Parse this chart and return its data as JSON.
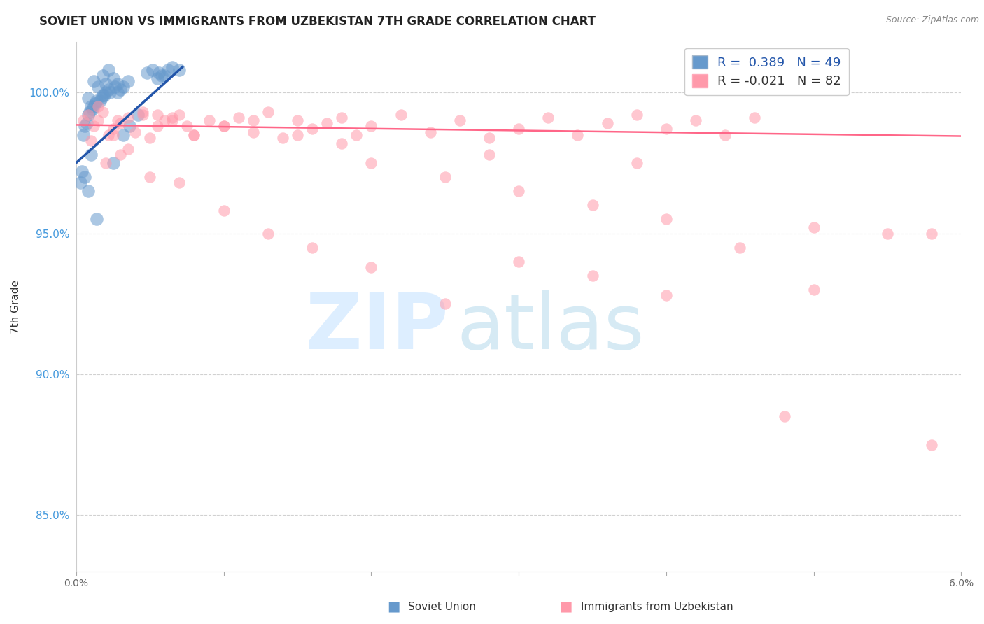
{
  "title": "SOVIET UNION VS IMMIGRANTS FROM UZBEKISTAN 7TH GRADE CORRELATION CHART",
  "source": "Source: ZipAtlas.com",
  "ylabel": "7th Grade",
  "xmin": 0.0,
  "xmax": 6.0,
  "ymin": 83.0,
  "ymax": 101.8,
  "yticks": [
    85.0,
    90.0,
    95.0,
    100.0
  ],
  "ytick_labels": [
    "85.0%",
    "90.0%",
    "95.0%",
    "100.0%"
  ],
  "blue_color": "#6699CC",
  "pink_color": "#FF99AA",
  "blue_line_color": "#2255AA",
  "pink_line_color": "#FF6688",
  "blue_scatter_x": [
    0.12,
    0.18,
    0.22,
    0.08,
    0.15,
    0.1,
    0.05,
    0.2,
    0.25,
    0.3,
    0.35,
    0.28,
    0.32,
    0.18,
    0.14,
    0.09,
    0.06,
    0.22,
    0.28,
    0.17,
    0.13,
    0.08,
    0.12,
    0.26,
    0.19,
    0.23,
    0.11,
    0.07,
    0.16,
    0.2,
    0.48,
    0.52,
    0.56,
    0.58,
    0.62,
    0.65,
    0.7,
    0.55,
    0.6,
    0.1,
    0.04,
    0.32,
    0.36,
    0.03,
    0.06,
    0.08,
    0.42,
    0.25,
    0.14
  ],
  "blue_scatter_y": [
    100.4,
    100.6,
    100.8,
    99.8,
    100.2,
    99.5,
    98.5,
    100.3,
    100.5,
    100.1,
    100.4,
    100.0,
    100.2,
    99.9,
    99.7,
    99.3,
    98.8,
    100.1,
    100.3,
    99.8,
    99.6,
    99.2,
    99.5,
    100.2,
    99.9,
    100.0,
    99.4,
    98.9,
    99.7,
    100.0,
    100.7,
    100.8,
    100.7,
    100.6,
    100.8,
    100.9,
    100.8,
    100.5,
    100.6,
    97.8,
    97.2,
    98.5,
    98.8,
    96.8,
    97.0,
    96.5,
    99.2,
    97.5,
    95.5
  ],
  "pink_scatter_x": [
    0.05,
    0.08,
    0.12,
    0.15,
    0.18,
    0.22,
    0.25,
    0.28,
    0.3,
    0.35,
    0.4,
    0.45,
    0.5,
    0.55,
    0.6,
    0.65,
    0.7,
    0.75,
    0.8,
    0.9,
    1.0,
    1.1,
    1.2,
    1.3,
    1.4,
    1.5,
    1.6,
    1.7,
    1.8,
    1.9,
    2.0,
    2.2,
    2.4,
    2.6,
    2.8,
    3.0,
    3.2,
    3.4,
    3.6,
    3.8,
    4.0,
    4.2,
    4.4,
    4.6,
    0.1,
    0.2,
    0.3,
    0.5,
    0.7,
    1.0,
    1.3,
    1.6,
    2.0,
    2.5,
    3.0,
    3.5,
    4.0,
    4.5,
    5.0,
    5.5,
    0.15,
    0.25,
    0.35,
    0.45,
    0.55,
    0.65,
    0.8,
    1.0,
    1.2,
    1.5,
    2.0,
    2.5,
    3.0,
    3.5,
    4.0,
    5.0,
    5.8,
    1.8,
    2.8,
    3.8,
    4.8,
    5.8
  ],
  "pink_scatter_y": [
    99.0,
    99.2,
    98.8,
    99.5,
    99.3,
    98.5,
    98.7,
    99.0,
    98.9,
    99.1,
    98.6,
    99.3,
    98.4,
    99.2,
    99.0,
    99.1,
    99.2,
    98.8,
    98.5,
    99.0,
    98.8,
    99.1,
    98.6,
    99.3,
    98.4,
    99.0,
    98.7,
    98.9,
    99.1,
    98.5,
    98.8,
    99.2,
    98.6,
    99.0,
    98.4,
    98.7,
    99.1,
    98.5,
    98.9,
    99.2,
    98.7,
    99.0,
    98.5,
    99.1,
    98.3,
    97.5,
    97.8,
    97.0,
    96.8,
    95.8,
    95.0,
    94.5,
    93.8,
    92.5,
    94.0,
    93.5,
    92.8,
    94.5,
    93.0,
    95.0,
    99.0,
    98.5,
    98.0,
    99.2,
    98.8,
    99.0,
    98.5,
    98.8,
    99.0,
    98.5,
    97.5,
    97.0,
    96.5,
    96.0,
    95.5,
    95.2,
    95.0,
    98.2,
    97.8,
    97.5,
    88.5,
    87.5
  ],
  "blue_trendline_x": [
    0.0,
    0.72
  ],
  "blue_trendline_y": [
    97.5,
    100.9
  ],
  "pink_trendline_x": [
    0.0,
    6.0
  ],
  "pink_trendline_y": [
    98.85,
    98.45
  ]
}
